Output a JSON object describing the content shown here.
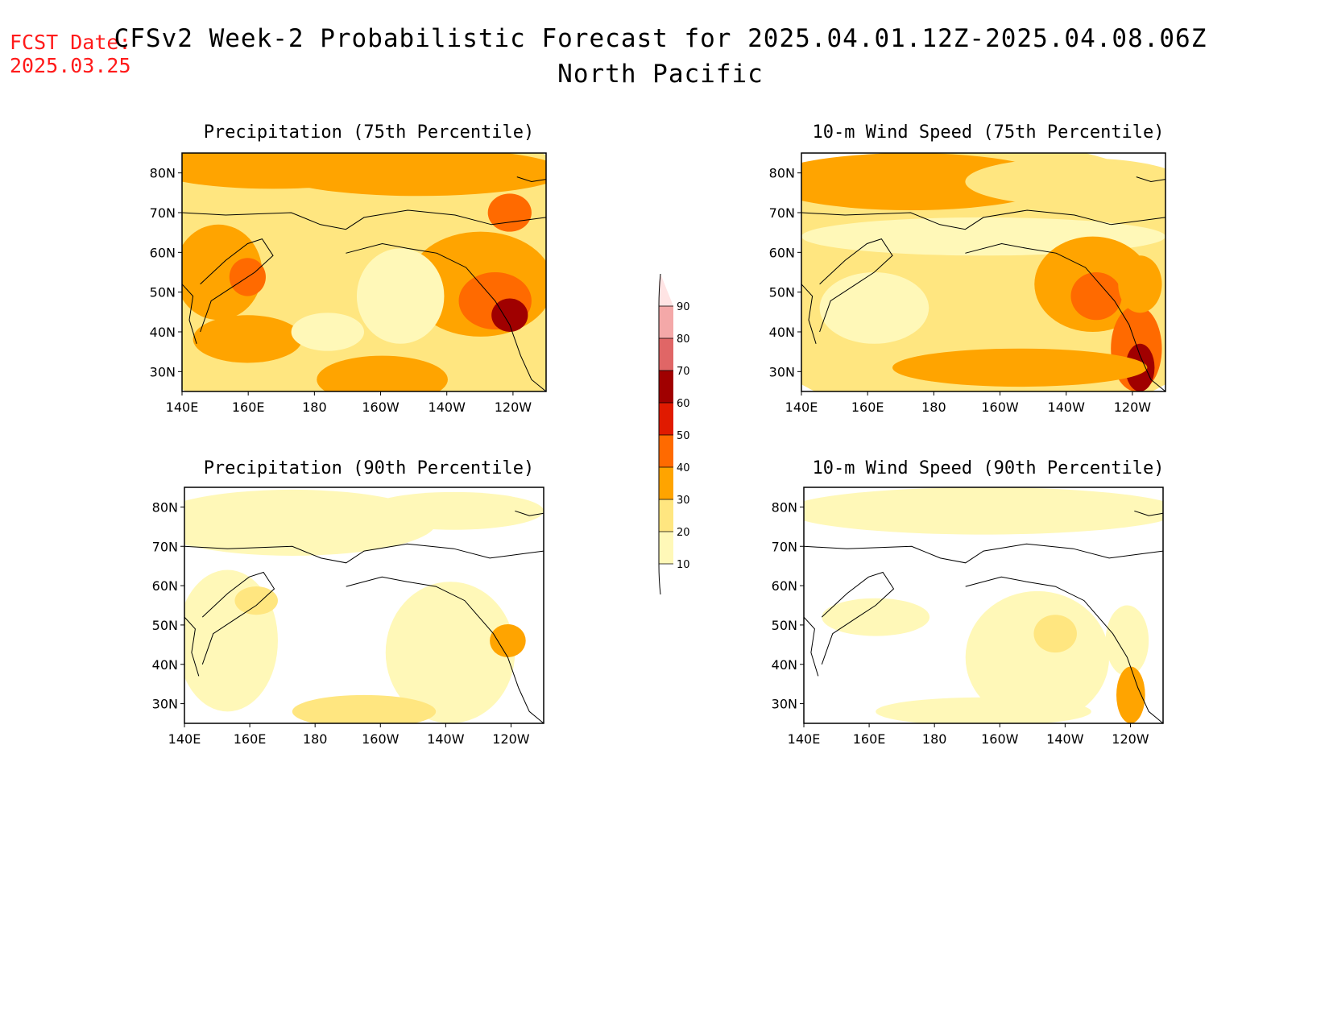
{
  "header": {
    "fcst_label": "FCST Date:",
    "fcst_date": "2025.03.25",
    "title": "CFSv2 Week-2 Probabilistic Forecast for 2025.04.01.12Z-2025.04.08.06Z",
    "subtitle": "North Pacific"
  },
  "axes": {
    "lon_ticks": [
      "140E",
      "160E",
      "180",
      "160W",
      "140W",
      "120W"
    ],
    "lat_ticks": [
      "80N",
      "70N",
      "60N",
      "50N",
      "40N",
      "30N"
    ]
  },
  "panels": [
    {
      "id": "precip75",
      "title": "Precipitation (75th Percentile)",
      "intensity": "high",
      "extreme_region": "us-west-coast"
    },
    {
      "id": "wind75",
      "title": "10-m Wind Speed (75th Percentile)",
      "intensity": "medium",
      "extreme_region": "baja-california"
    },
    {
      "id": "precip90",
      "title": "Precipitation (90th Percentile)",
      "intensity": "low",
      "extreme_region": "pacific-northwest"
    },
    {
      "id": "wind90",
      "title": "10-m Wind Speed (90th Percentile)",
      "intensity": "low",
      "extreme_region": "baja-california"
    }
  ],
  "colorbar": {
    "levels": [
      "10",
      "20",
      "30",
      "40",
      "50",
      "60",
      "70",
      "80",
      "90"
    ],
    "colors": [
      "#fff8b8",
      "#ffe680",
      "#ffa400",
      "#ff6a00",
      "#e01a00",
      "#a00000",
      "#e06666",
      "#f4a8a8",
      "#ffe4e4"
    ]
  }
}
